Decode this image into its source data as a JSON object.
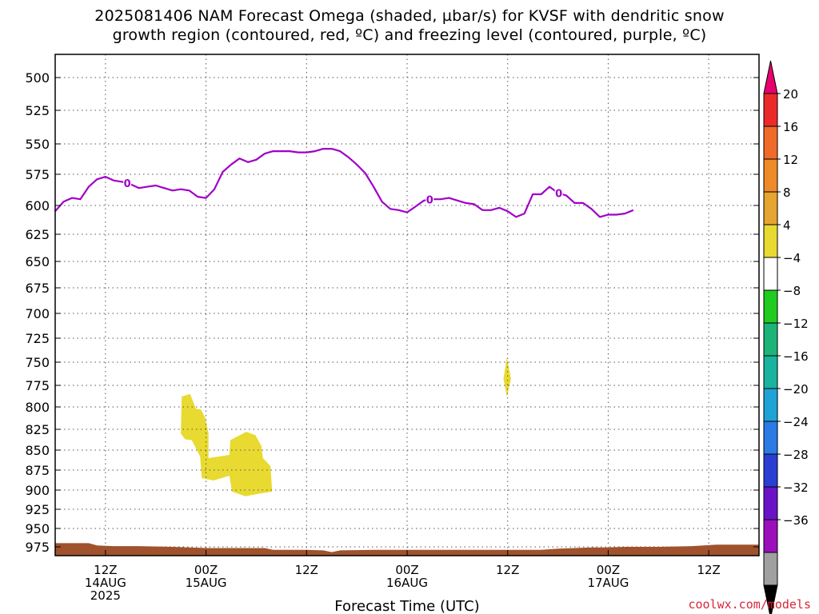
{
  "title_line1": "2025081406 NAM Forecast Omega (shaded, µbar/s) for KVSF with dendritic snow",
  "title_line2": "growth region (contoured, red, ºC) and freezing level (contoured, purple, ºC)",
  "watermark": "coolwx.com/models",
  "chart_data": {
    "type": "time-height cross section",
    "xlabel": "Forecast Time (UTC)",
    "x_ticks": [
      {
        "hour": 6,
        "lines": [
          "12Z",
          "14AUG",
          "2025"
        ]
      },
      {
        "hour": 18,
        "lines": [
          "00Z",
          "15AUG"
        ]
      },
      {
        "hour": 30,
        "lines": [
          "12Z"
        ]
      },
      {
        "hour": 42,
        "lines": [
          "00Z",
          "16AUG"
        ]
      },
      {
        "hour": 54,
        "lines": [
          "12Z"
        ]
      },
      {
        "hour": 66,
        "lines": [
          "00Z",
          "17AUG"
        ]
      },
      {
        "hour": 78,
        "lines": [
          "12Z"
        ]
      }
    ],
    "xlim": [
      0,
      84
    ],
    "y_axis": "pressure (hPa), reversed",
    "ylim": [
      475,
      990
    ],
    "y_ticks": [
      500,
      525,
      550,
      575,
      600,
      625,
      650,
      675,
      700,
      725,
      750,
      775,
      800,
      825,
      850,
      875,
      900,
      925,
      950,
      975
    ],
    "grid": true,
    "colorbar": {
      "labels": [
        "20",
        "16",
        "12",
        "8",
        "4",
        "-4",
        "-8",
        "-12",
        "-16",
        "-20",
        "-24",
        "-28",
        "-32",
        "-36"
      ],
      "bins": [
        {
          "color": "#e8006e"
        },
        {
          "color": "#ec2a2a"
        },
        {
          "color": "#f06a28"
        },
        {
          "color": "#ee8b28"
        },
        {
          "color": "#e6a530"
        },
        {
          "color": "#e8da30"
        },
        {
          "color": "#ffffff"
        },
        {
          "color": "#1fcc1f"
        },
        {
          "color": "#1bb57a"
        },
        {
          "color": "#18b4a0"
        },
        {
          "color": "#1fa3d6"
        },
        {
          "color": "#2b7ae6"
        },
        {
          "color": "#2a3ed4"
        },
        {
          "color": "#6a12c8"
        },
        {
          "color": "#9b10bb"
        },
        {
          "color": "#a0a0a0"
        },
        {
          "color": "#000000"
        }
      ]
    },
    "freezing_level": {
      "label": "0",
      "color": "#a000c8",
      "points": [
        [
          0,
          605
        ],
        [
          1,
          597
        ],
        [
          2,
          594
        ],
        [
          3,
          595
        ],
        [
          4,
          585
        ],
        [
          5,
          579
        ],
        [
          6,
          577
        ],
        [
          7,
          580
        ],
        [
          8,
          581
        ],
        [
          9,
          583
        ],
        [
          10,
          586
        ],
        [
          11,
          585
        ],
        [
          12,
          584
        ],
        [
          13,
          586
        ],
        [
          14,
          588
        ],
        [
          15,
          587
        ],
        [
          16,
          588
        ],
        [
          17,
          593
        ],
        [
          18,
          594
        ],
        [
          19,
          587
        ],
        [
          20,
          573
        ],
        [
          21,
          567
        ],
        [
          22,
          562
        ],
        [
          23,
          565
        ],
        [
          24,
          563
        ],
        [
          25,
          558
        ],
        [
          26,
          556
        ],
        [
          27,
          556
        ],
        [
          28,
          556
        ],
        [
          29,
          557
        ],
        [
          30,
          557
        ],
        [
          31,
          556
        ],
        [
          32,
          554
        ],
        [
          33,
          554
        ],
        [
          34,
          556
        ],
        [
          35,
          561
        ],
        [
          36,
          567
        ],
        [
          37,
          574
        ],
        [
          38,
          585
        ],
        [
          39,
          597
        ],
        [
          40,
          603
        ],
        [
          41,
          604
        ],
        [
          42,
          606
        ],
        [
          43,
          601
        ],
        [
          44,
          596
        ],
        [
          45,
          595
        ],
        [
          46,
          595
        ],
        [
          47,
          594
        ],
        [
          48,
          596
        ],
        [
          49,
          598
        ],
        [
          50,
          599
        ],
        [
          51,
          604
        ],
        [
          52,
          604
        ],
        [
          53,
          602
        ],
        [
          54,
          605
        ],
        [
          55,
          610
        ],
        [
          56,
          607
        ],
        [
          57,
          591
        ],
        [
          58,
          591
        ],
        [
          59,
          585
        ],
        [
          60,
          590
        ],
        [
          61,
          592
        ],
        [
          62,
          598
        ],
        [
          63,
          598
        ],
        [
          64,
          603
        ],
        [
          65,
          610
        ],
        [
          66,
          608
        ],
        [
          67,
          608
        ],
        [
          68,
          607
        ],
        [
          69,
          604
        ]
      ],
      "contour_labels_at_hour": [
        8.6,
        44.7,
        60.1
      ]
    },
    "omega_shading": [
      {
        "value_bin": "4 to 8",
        "color": "#e8da30",
        "polygon": [
          [
            15.1,
            788
          ],
          [
            16.1,
            785
          ],
          [
            16.8,
            802
          ],
          [
            17.4,
            803
          ],
          [
            17.9,
            812
          ],
          [
            18.3,
            830
          ],
          [
            18.3,
            860
          ],
          [
            20.8,
            856
          ],
          [
            20.9,
            838
          ],
          [
            22.8,
            828
          ],
          [
            23.9,
            832
          ],
          [
            24.6,
            845
          ],
          [
            24.8,
            860
          ],
          [
            25.7,
            870
          ],
          [
            25.9,
            902
          ],
          [
            24.2,
            905
          ],
          [
            22.7,
            908
          ],
          [
            21.1,
            902
          ],
          [
            20.8,
            882
          ],
          [
            18.9,
            888
          ],
          [
            17.5,
            885
          ],
          [
            17.3,
            858
          ],
          [
            16.3,
            838
          ],
          [
            15.5,
            837
          ],
          [
            15.0,
            830
          ]
        ]
      },
      {
        "value_bin": "4 to 8",
        "color": "#e8da30",
        "polygon": [
          [
            53.9,
            745
          ],
          [
            54.4,
            768
          ],
          [
            53.9,
            788
          ],
          [
            53.5,
            768
          ]
        ]
      }
    ],
    "terrain": {
      "color": "#a0522d",
      "surface_points": [
        [
          0,
          970
        ],
        [
          4,
          970
        ],
        [
          5,
          973
        ],
        [
          7,
          974
        ],
        [
          10,
          974
        ],
        [
          14,
          975
        ],
        [
          18,
          977
        ],
        [
          22,
          977
        ],
        [
          25,
          977
        ],
        [
          26,
          980
        ],
        [
          30,
          980
        ],
        [
          32,
          981
        ],
        [
          33,
          984
        ],
        [
          34,
          981
        ],
        [
          38,
          980
        ],
        [
          42,
          980
        ],
        [
          46,
          980
        ],
        [
          50,
          980
        ],
        [
          54,
          980
        ],
        [
          58,
          980
        ],
        [
          60,
          978
        ],
        [
          64,
          976
        ],
        [
          66,
          976
        ],
        [
          68,
          975
        ],
        [
          72,
          975
        ],
        [
          76,
          974
        ],
        [
          79,
          972
        ],
        [
          84,
          972
        ]
      ]
    }
  }
}
